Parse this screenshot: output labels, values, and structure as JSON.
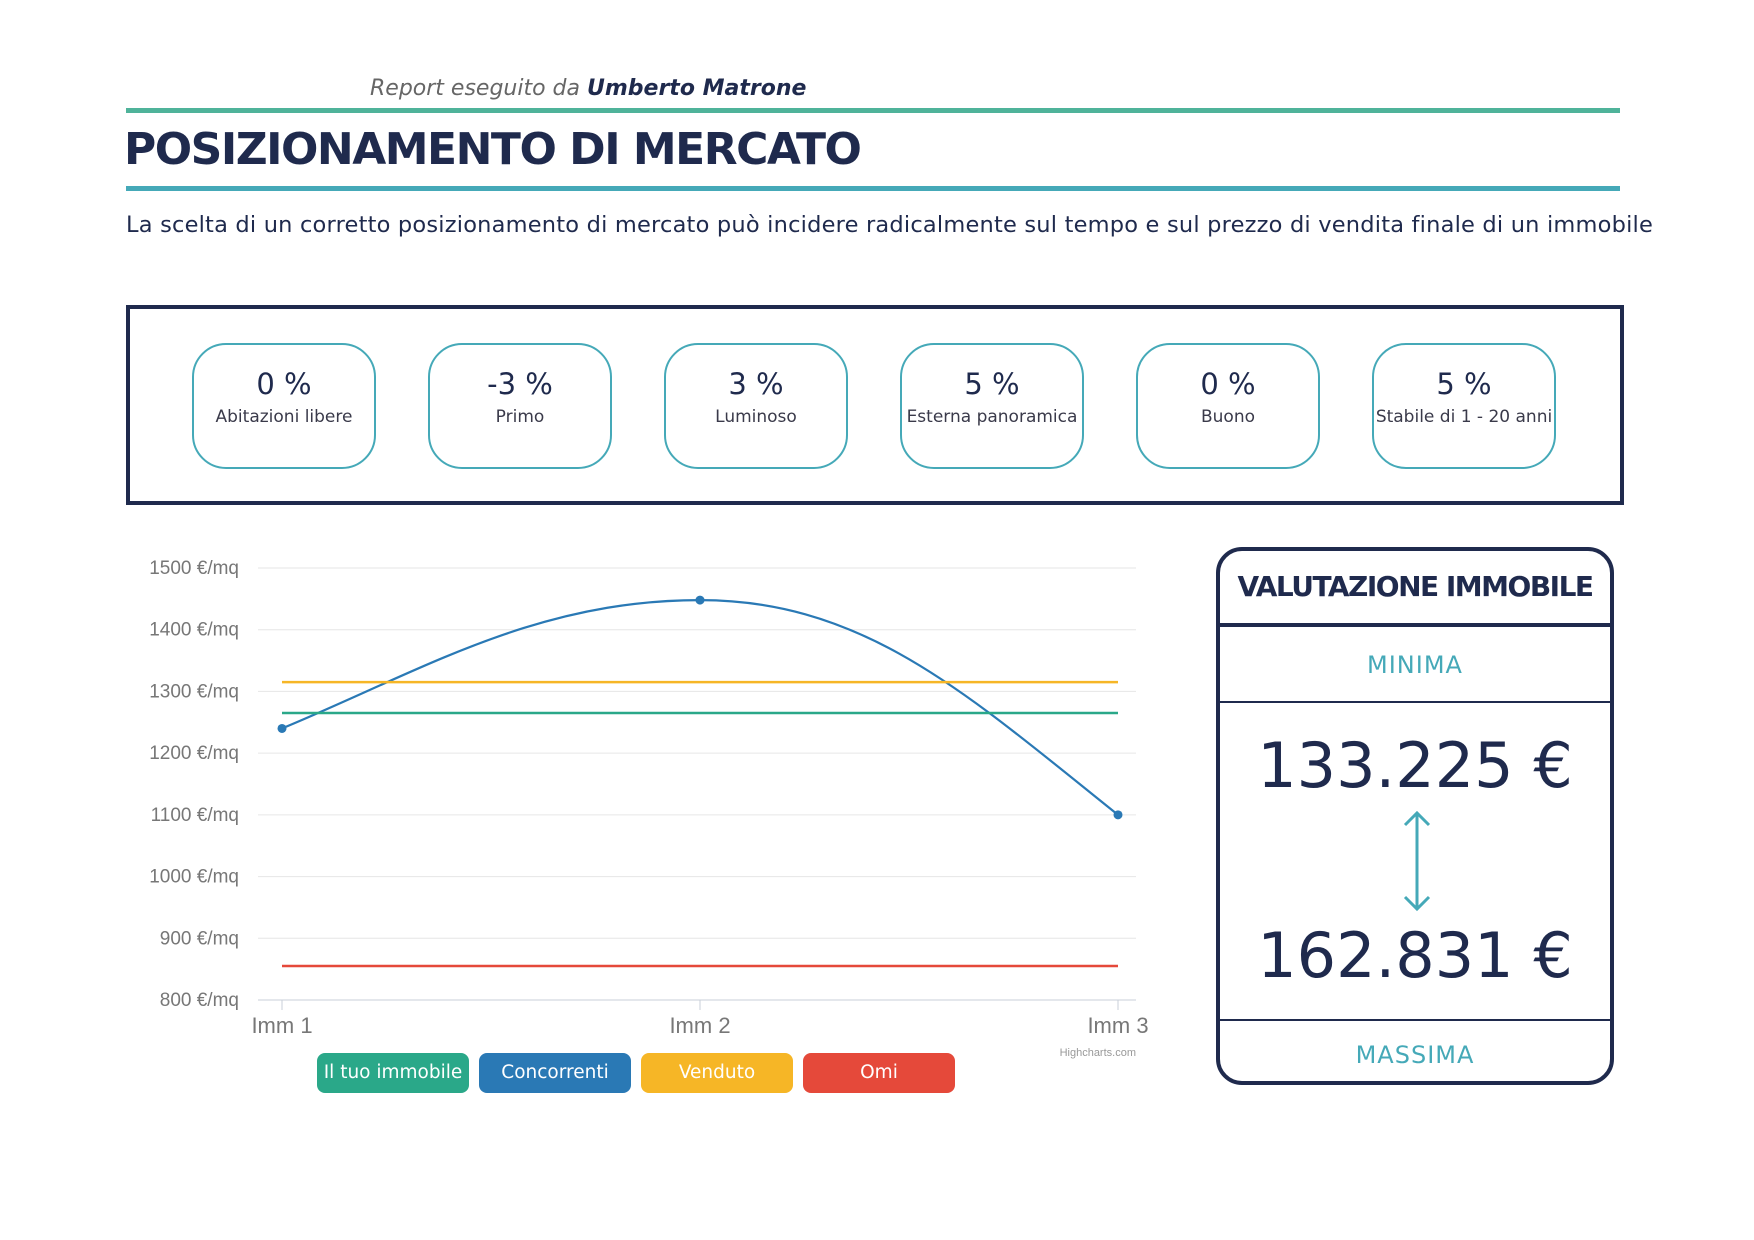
{
  "header": {
    "report_prefix": "Report eseguito da",
    "author": "Umberto Matrone",
    "title": "POSIZIONAMENTO DI MERCATO",
    "subtitle": "La scelta di un corretto posizionamento di mercato può incidere radicalmente sul tempo e sul prezzo di vendita finale di un immobile"
  },
  "factors": [
    {
      "value": "0 %",
      "label": "Abitazioni libere"
    },
    {
      "value": "-3 %",
      "label": "Primo"
    },
    {
      "value": "3 %",
      "label": "Luminoso"
    },
    {
      "value": "5 %",
      "label": "Esterna panoramica"
    },
    {
      "value": "0 %",
      "label": "Buono"
    },
    {
      "value": "5 %",
      "label": "Stabile di 1 - 20 anni"
    }
  ],
  "legend": [
    {
      "label": "Il tuo immobile",
      "color": "#2aa889"
    },
    {
      "label": "Concorrenti",
      "color": "#2a79b5"
    },
    {
      "label": "Venduto",
      "color": "#f6b626"
    },
    {
      "label": "Omi",
      "color": "#e5493a"
    }
  ],
  "chart_data": {
    "type": "line",
    "categories": [
      "Imm 1",
      "Imm 2",
      "Imm 3"
    ],
    "y_ticks": [
      "800 €/mq",
      "900 €/mq",
      "1000 €/mq",
      "1100 €/mq",
      "1200 €/mq",
      "1300 €/mq",
      "1400 €/mq",
      "1500 €/mq"
    ],
    "ylim": [
      800,
      1500
    ],
    "grid": true,
    "credit": "Highcharts.com",
    "series": [
      {
        "name": "Concorrenti",
        "color": "#2a79b5",
        "values": [
          1240,
          1448,
          1100
        ],
        "markers": true,
        "smooth": true
      },
      {
        "name": "Il tuo immobile",
        "color": "#2aa889",
        "values": [
          1265,
          1265,
          1265
        ]
      },
      {
        "name": "Venduto",
        "color": "#f6b626",
        "values": [
          1315,
          1315,
          1315
        ]
      },
      {
        "name": "Omi",
        "color": "#e5493a",
        "values": [
          855,
          855,
          855
        ]
      }
    ]
  },
  "valuation": {
    "title": "VALUTAZIONE IMMOBILE",
    "min_label": "MINIMA",
    "min_value": "133.225 €",
    "max_value": "162.831 €",
    "max_label": "MASSIMA"
  }
}
